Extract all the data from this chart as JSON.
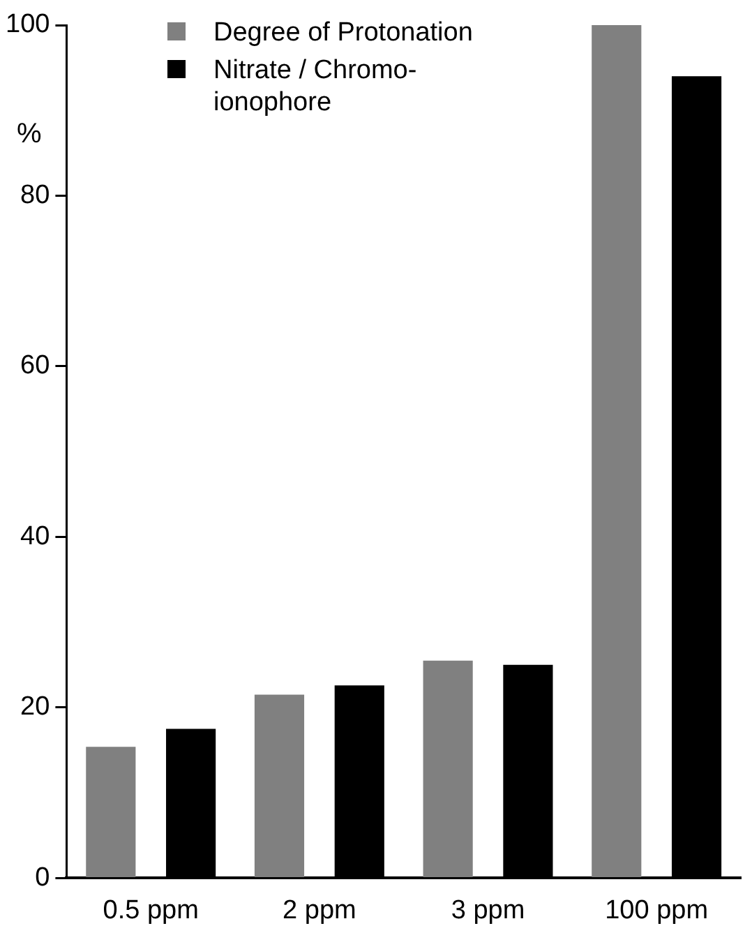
{
  "chart_data": {
    "type": "bar",
    "ylabel": "%",
    "categories": [
      "0.5 ppm",
      "2 ppm",
      "3 ppm",
      "100 ppm"
    ],
    "series": [
      {
        "name": "Degree of Protonation",
        "color": "#808080",
        "values": [
          15.4,
          21.5,
          25.5,
          100
        ]
      },
      {
        "name": "Nitrate / Chromo-ionophore",
        "color": "#000000",
        "values": [
          17.5,
          22.6,
          25,
          94
        ]
      }
    ],
    "ylim": [
      0,
      100
    ],
    "yticks": [
      0,
      20,
      40,
      60,
      80,
      100
    ],
    "grid": false,
    "legend": "top left"
  }
}
